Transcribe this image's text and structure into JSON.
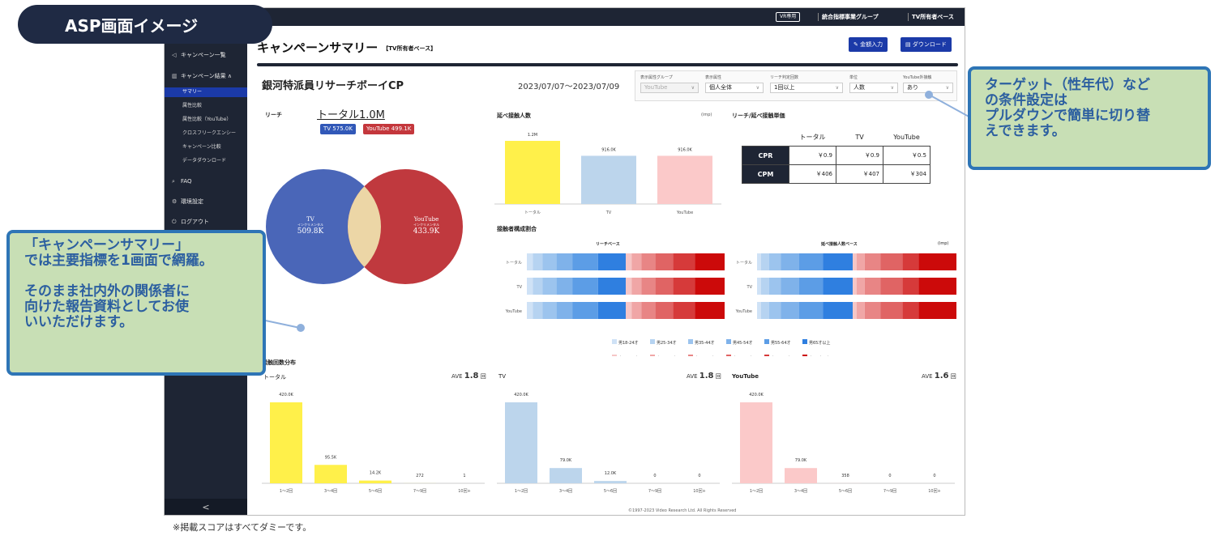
{
  "badge": "ASP画面イメージ",
  "topbar": {
    "vr_button": "VR専用",
    "group": "統合指標事業グループ",
    "base": "TV所有者ベース"
  },
  "sidebar": {
    "items": [
      {
        "icon": "back-arrow-icon",
        "label": "キャンペーン一覧"
      },
      {
        "icon": "bar-chart-icon",
        "label": "キャンペーン結果 ∧"
      },
      {
        "label": "サマリー"
      },
      {
        "label": "属性比較"
      },
      {
        "label": "属性比較（YouTube）"
      },
      {
        "label": "クロスフリークエンシー"
      },
      {
        "label": "キャンペーン比較"
      },
      {
        "label": "データダウンロード"
      },
      {
        "icon": "search-icon",
        "label": "FAQ"
      },
      {
        "icon": "gear-icon",
        "label": "環境設定"
      },
      {
        "icon": "logout-icon",
        "label": "ログアウト"
      }
    ],
    "collapse": "<"
  },
  "header": {
    "title": "キャンペーンサマリー",
    "title_tag": "【TV所有者ベース】",
    "buttons": {
      "input": "金額入力",
      "download": "ダウンロード"
    }
  },
  "campaign": {
    "name": "銀河特派員リサーチボーイCP",
    "dates": "2023/07/07〜2023/07/09"
  },
  "filters": [
    {
      "label": "表示属性グループ",
      "value": "YouTube",
      "disabled": true
    },
    {
      "label": "表示属性",
      "value": "個人全体"
    },
    {
      "label": "リーチ判定回数",
      "value": "1回以上"
    },
    {
      "label": "単位",
      "value": "人数"
    },
    {
      "label": "YouTube外接触",
      "value": "あり"
    }
  ],
  "reach": {
    "label": "リーチ",
    "total": "トータル1.0M",
    "tv_badge": "TV 575.0K",
    "yt_badge": "YouTube 499.1K",
    "tv": {
      "name": "TV",
      "sub": "インクリメンタル",
      "value": "509.8K"
    },
    "yt": {
      "name": "YouTube",
      "sub": "インクリメンタル",
      "value": "433.9K"
    }
  },
  "impressions": {
    "title": "延べ接触人数",
    "unit": "(imp)",
    "chart_data": {
      "type": "bar",
      "categories": [
        "トータル",
        "TV",
        "YouTube"
      ],
      "values": [
        1.2,
        0.916,
        0.916
      ],
      "labels": [
        "1.2M",
        "916.0K",
        "916.0K"
      ],
      "colors": [
        "#fff04a",
        "#bcd5ec",
        "#fbc9c9"
      ]
    }
  },
  "cost": {
    "title": "リーチ/延べ接触単価",
    "cols": [
      "トータル",
      "TV",
      "YouTube"
    ],
    "rows": [
      {
        "label": "CPR",
        "values": [
          "￥0.9",
          "￥0.9",
          "￥0.5"
        ]
      },
      {
        "label": "CPM",
        "values": [
          "￥406",
          "￥407",
          "￥304"
        ]
      }
    ]
  },
  "composition": {
    "title": "接触者構成割合",
    "reach_title": "リーチベース",
    "imp_title": "延べ接触人数ベース",
    "imp_unit": "(imp)",
    "rows": [
      "トータル",
      "TV",
      "YouTube"
    ],
    "chart_data": {
      "type": "bar",
      "stacked": true,
      "orientation": "horizontal",
      "series_names": [
        "男18-24才",
        "男25-34才",
        "男35-44才",
        "男45-54才",
        "男55-64才",
        "男65才以上",
        "女18-24才",
        "女25-34才",
        "女35-44才",
        "女45-54才",
        "女55-64才",
        "女65才以上"
      ],
      "colors": [
        "#cfe2f6",
        "#b6d3f1",
        "#9cc4ee",
        "#7fb2ea",
        "#5c9de6",
        "#2f7fe0",
        "#f6c6c6",
        "#f0a6a6",
        "#e88585",
        "#e06464",
        "#d63a3a",
        "#cc0a0a"
      ],
      "reach": [
        [
          3,
          5,
          7,
          8,
          13,
          14,
          3,
          5,
          7,
          9,
          11,
          15
        ],
        [
          3,
          5,
          7,
          8,
          13,
          14,
          3,
          5,
          7,
          9,
          11,
          15
        ],
        [
          3,
          5,
          7,
          8,
          13,
          14,
          3,
          5,
          7,
          9,
          11,
          15
        ]
      ],
      "imp": [
        [
          2,
          4,
          6,
          9,
          12,
          15,
          2,
          4,
          8,
          11,
          8,
          19
        ],
        [
          2,
          4,
          6,
          9,
          12,
          15,
          2,
          4,
          8,
          11,
          8,
          19
        ],
        [
          2,
          4,
          6,
          9,
          12,
          15,
          2,
          4,
          8,
          11,
          8,
          19
        ]
      ]
    }
  },
  "frequency": {
    "title": "接触回数分布",
    "charts": [
      {
        "name": "トータル",
        "ave_label": "AVE",
        "ave": "1.8",
        "ave_unit": "回",
        "color": "#fff04a",
        "chart_data": {
          "type": "bar",
          "categories": [
            "1〜2回",
            "3〜4回",
            "5〜6回",
            "7〜9回",
            "10回+"
          ],
          "values": [
            420,
            95.5,
            14.2,
            0.272,
            0.001
          ],
          "labels": [
            "420.0K",
            "95.5K",
            "14.2K",
            "272",
            "1"
          ]
        }
      },
      {
        "name": "TV",
        "ave_label": "AVE",
        "ave": "1.8",
        "ave_unit": "回",
        "color": "#bcd5ec",
        "chart_data": {
          "type": "bar",
          "categories": [
            "1〜2回",
            "3〜4回",
            "5〜6回",
            "7〜9回",
            "10回+"
          ],
          "values": [
            420,
            79,
            12,
            0,
            0
          ],
          "labels": [
            "420.0K",
            "79.0K",
            "12.0K",
            "0",
            "0"
          ]
        }
      },
      {
        "name": "YouTube",
        "ave_label": "AVE",
        "ave": "1.6",
        "ave_unit": "回",
        "color": "#fbc9c9",
        "chart_data": {
          "type": "bar",
          "categories": [
            "1〜2回",
            "3〜4回",
            "5〜6回",
            "7〜9回",
            "10回+"
          ],
          "values": [
            420,
            79,
            0.358,
            0,
            0
          ],
          "labels": [
            "420.0K",
            "79.0K",
            "358",
            "0",
            "0"
          ]
        }
      }
    ]
  },
  "footer": "©1997-2023 Video Research Ltd. All Rights Reserved",
  "callouts": {
    "right": [
      "ターゲット（性年代）など",
      "の条件設定は",
      "プルダウンで簡単に切り替",
      "えできます。"
    ],
    "left": [
      "「キャンペーンサマリー」",
      "では主要指標を1画面で網羅。",
      "",
      "そのまま社内外の関係者に",
      "向けた報告資料としてお使",
      "いいただけます。"
    ]
  },
  "note": "※掲載スコアはすべてダミーです。"
}
